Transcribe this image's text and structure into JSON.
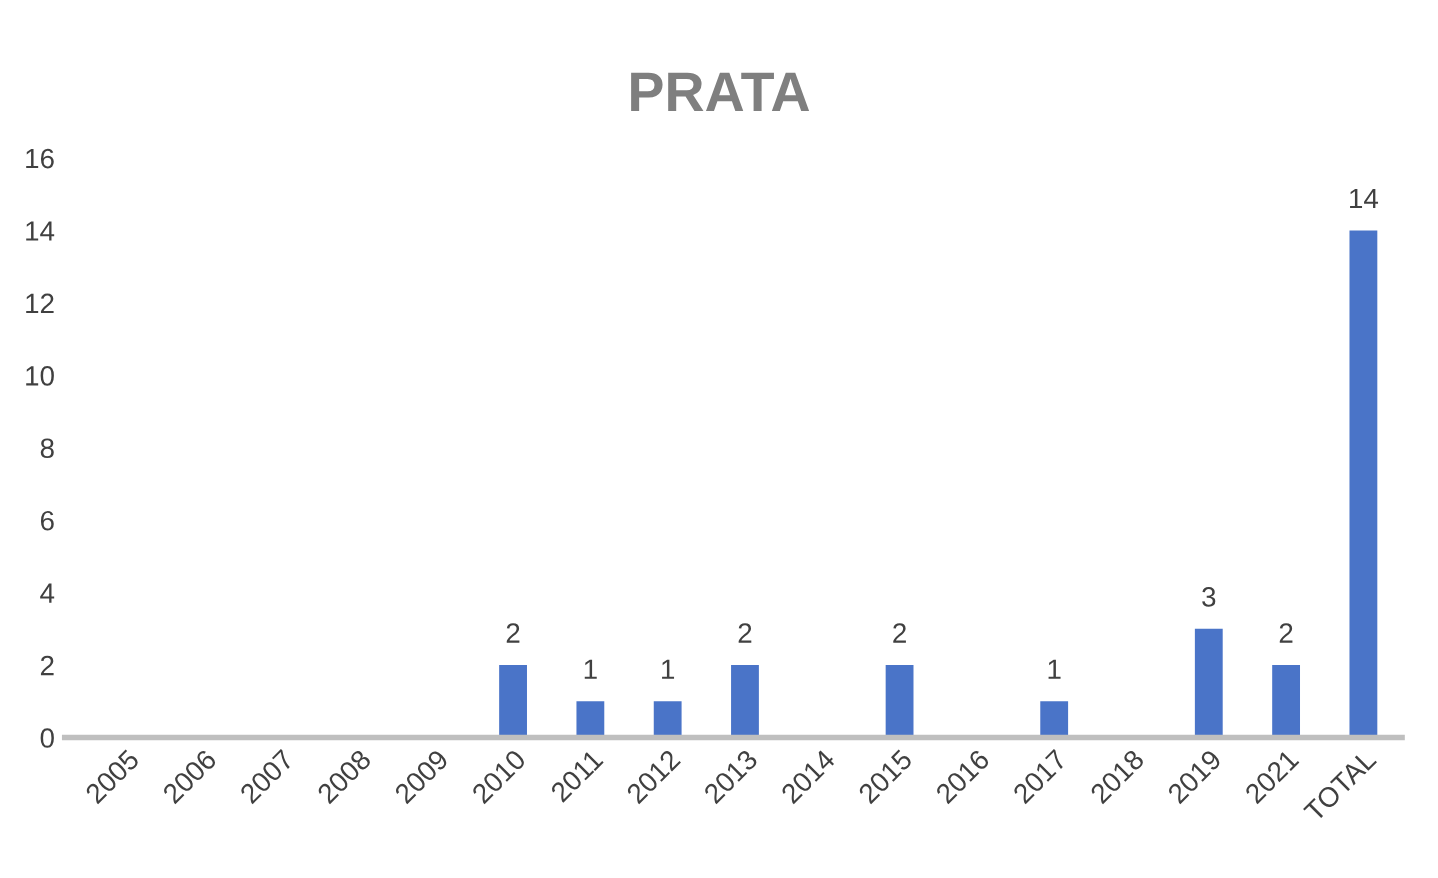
{
  "chart_data": {
    "type": "bar",
    "title": "PRATA",
    "categories": [
      "2005",
      "2006",
      "2007",
      "2008",
      "2009",
      "2010",
      "2011",
      "2012",
      "2013",
      "2014",
      "2015",
      "2016",
      "2017",
      "2018",
      "2019",
      "2021",
      "TOTAL"
    ],
    "values": [
      0,
      0,
      0,
      0,
      0,
      2,
      1,
      1,
      2,
      0,
      2,
      0,
      1,
      0,
      3,
      2,
      14
    ],
    "value_labels": [
      null,
      null,
      null,
      null,
      null,
      "2",
      "1",
      "1",
      "2",
      null,
      "2",
      null,
      "1",
      null,
      "3",
      "2",
      "14"
    ],
    "color": "#4a74c8",
    "ylim": [
      0,
      16
    ],
    "yticks": [
      0,
      2,
      4,
      6,
      8,
      10,
      12,
      14,
      16
    ],
    "grid": false,
    "legend": false
  }
}
